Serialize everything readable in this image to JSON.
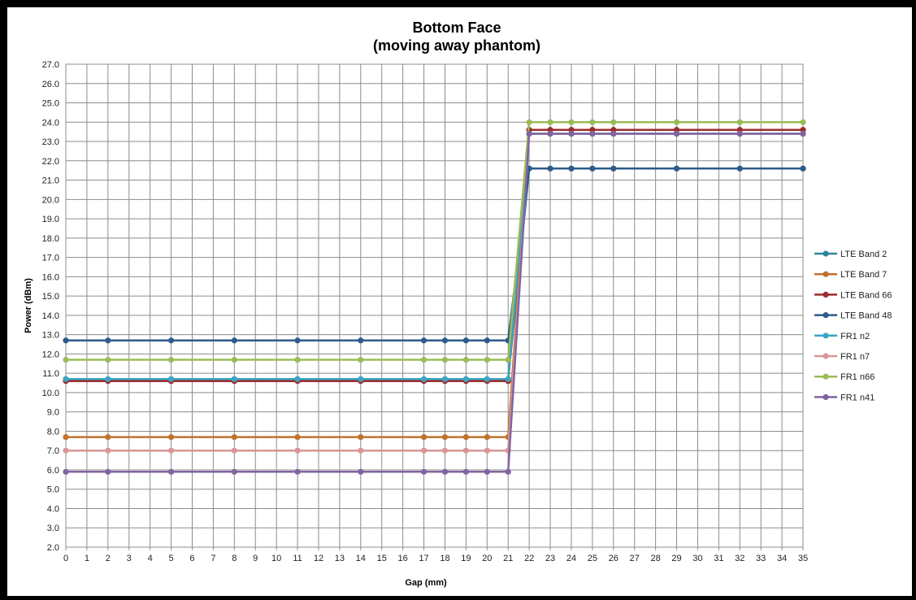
{
  "chart_data": {
    "type": "line",
    "title": "Bottom Face",
    "subtitle": "(moving away phantom)",
    "xlabel": "Gap (mm)",
    "ylabel": "Power (dBm)",
    "x": [
      0,
      2,
      5,
      8,
      11,
      14,
      17,
      18,
      19,
      20,
      21,
      22,
      23,
      24,
      25,
      26,
      29,
      32,
      35
    ],
    "x_ticks": [
      0,
      1,
      2,
      3,
      4,
      5,
      6,
      7,
      8,
      9,
      10,
      11,
      12,
      13,
      14,
      15,
      16,
      17,
      18,
      19,
      20,
      21,
      22,
      23,
      24,
      25,
      26,
      27,
      28,
      29,
      30,
      31,
      32,
      33,
      34,
      35
    ],
    "xlim": [
      0,
      35
    ],
    "ylim": [
      2.0,
      27.0
    ],
    "y_step": 1.0,
    "grid": true,
    "legend_position": "right",
    "series": [
      {
        "name": "LTE Band 2",
        "color": "#31859C",
        "values": [
          10.7,
          10.7,
          10.7,
          10.7,
          10.7,
          10.7,
          10.7,
          10.7,
          10.7,
          10.7,
          10.7,
          21.6,
          21.6,
          21.6,
          21.6,
          21.6,
          21.6,
          21.6,
          21.6
        ]
      },
      {
        "name": "LTE Band 7",
        "color": "#C0722F",
        "values": [
          7.7,
          7.7,
          7.7,
          7.7,
          7.7,
          7.7,
          7.7,
          7.7,
          7.7,
          7.7,
          7.7,
          23.6,
          23.6,
          23.6,
          23.6,
          23.6,
          23.6,
          23.6,
          23.6
        ]
      },
      {
        "name": "LTE Band 66",
        "color": "#9B2D2A",
        "values": [
          10.6,
          10.6,
          10.6,
          10.6,
          10.6,
          10.6,
          10.6,
          10.6,
          10.6,
          10.6,
          10.6,
          23.6,
          23.6,
          23.6,
          23.6,
          23.6,
          23.6,
          23.6,
          23.6
        ]
      },
      {
        "name": "LTE Band 48",
        "color": "#2E5B8A",
        "values": [
          12.7,
          12.7,
          12.7,
          12.7,
          12.7,
          12.7,
          12.7,
          12.7,
          12.7,
          12.7,
          12.7,
          21.6,
          21.6,
          21.6,
          21.6,
          21.6,
          21.6,
          21.6,
          21.6
        ]
      },
      {
        "name": "FR1 n2",
        "color": "#3DA4C4",
        "values": [
          10.7,
          10.7,
          10.7,
          10.7,
          10.7,
          10.7,
          10.7,
          10.7,
          10.7,
          10.7,
          10.7,
          23.4,
          23.4,
          23.4,
          23.4,
          23.4,
          23.4,
          23.4,
          23.4
        ]
      },
      {
        "name": "FR1 n7",
        "color": "#D99694",
        "values": [
          7.0,
          7.0,
          7.0,
          7.0,
          7.0,
          7.0,
          7.0,
          7.0,
          7.0,
          7.0,
          7.0,
          23.4,
          23.4,
          23.4,
          23.4,
          23.4,
          23.4,
          23.4,
          23.4
        ]
      },
      {
        "name": "FR1 n66",
        "color": "#9BBB59",
        "values": [
          11.7,
          11.7,
          11.7,
          11.7,
          11.7,
          11.7,
          11.7,
          11.7,
          11.7,
          11.7,
          11.7,
          24.0,
          24.0,
          24.0,
          24.0,
          24.0,
          24.0,
          24.0,
          24.0
        ]
      },
      {
        "name": "FR1 n41",
        "color": "#8064A2",
        "values": [
          5.9,
          5.9,
          5.9,
          5.9,
          5.9,
          5.9,
          5.9,
          5.9,
          5.9,
          5.9,
          5.9,
          23.4,
          23.4,
          23.4,
          23.4,
          23.4,
          23.4,
          23.4,
          23.4
        ]
      }
    ]
  }
}
